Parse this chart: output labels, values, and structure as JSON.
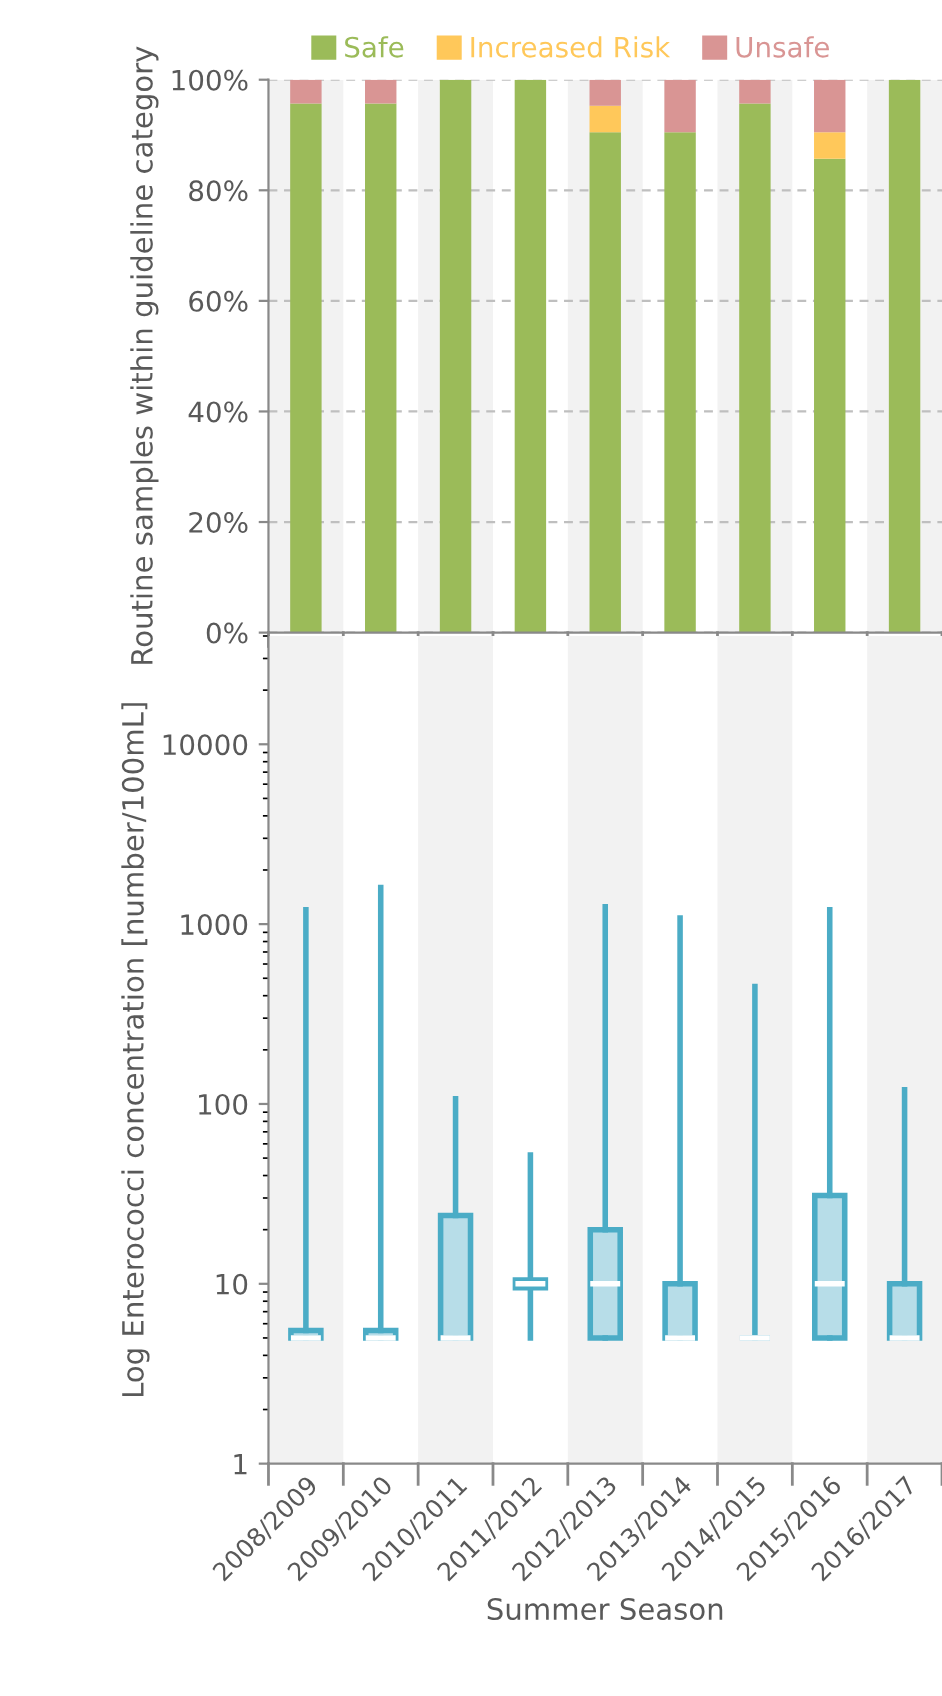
{
  "chart_data": [
    {
      "type": "bar",
      "stacked": true,
      "ylabel": "Routine samples within guideline category",
      "categories": [
        null,
        null,
        null,
        null,
        null,
        null,
        null,
        null,
        null
      ],
      "series": [
        {
          "name": "Safe",
          "color": "#9bbb59",
          "values": [
            95.7,
            95.7,
            100,
            100,
            90.5,
            90.5,
            95.7,
            85.7,
            100
          ]
        },
        {
          "name": "Increased Risk",
          "color": "#ffc85a",
          "values": [
            0,
            0,
            0,
            0,
            4.8,
            0,
            0,
            4.8,
            0
          ]
        },
        {
          "name": "Unsafe",
          "color": "#d99594",
          "values": [
            4.3,
            4.3,
            0,
            0,
            4.7,
            9.5,
            4.3,
            9.5,
            0
          ]
        }
      ],
      "ylim": [
        0,
        100
      ],
      "yticks": [
        {
          "value": 0,
          "label": "0%"
        },
        {
          "value": 20,
          "label": "20%"
        },
        {
          "value": 40,
          "label": "40%"
        },
        {
          "value": 60,
          "label": "60%"
        },
        {
          "value": 80,
          "label": "80%"
        },
        {
          "value": 100,
          "label": "100%"
        }
      ],
      "tick_labels": "y",
      "legend": "top",
      "grid": "y"
    },
    {
      "type": "box",
      "log": true,
      "xlabel": "Summer Season",
      "ylabel": "Log Enterococci concentration [number/100mL]",
      "categories": [
        "2008/2009",
        "2009/2010",
        "2010/2011",
        "2011/2012",
        "2012/2013",
        "2013/2014",
        "2014/2015",
        "2015/2016",
        "2016/2017"
      ],
      "color": "#4bacc6",
      "boxes": [
        {
          "low": 5,
          "q1": 5,
          "median": 5,
          "q3": 5.5,
          "high": 1200
        },
        {
          "low": 5,
          "q1": 5,
          "median": 5,
          "q3": 5.5,
          "high": 1600
        },
        {
          "low": 5,
          "q1": 5,
          "median": 5,
          "q3": 24,
          "high": 107
        },
        {
          "low": 5,
          "q1": 9.5,
          "median": 10,
          "q3": 10.5,
          "high": 52
        },
        {
          "low": 5,
          "q1": 5,
          "median": 10,
          "q3": 20,
          "high": 1250
        },
        {
          "low": 5,
          "q1": 5,
          "median": 5,
          "q3": 10,
          "high": 1080
        },
        {
          "low": 5,
          "q1": 5,
          "median": 5,
          "q3": 5,
          "high": 450
        },
        {
          "low": 5,
          "q1": 5,
          "median": 10,
          "q3": 31,
          "high": 1200
        },
        {
          "low": 5,
          "q1": 5,
          "median": 5,
          "q3": 10,
          "high": 120
        }
      ],
      "ylim": [
        1,
        40000
      ],
      "yticks": [
        1,
        10,
        100,
        1000,
        10000
      ]
    }
  ]
}
